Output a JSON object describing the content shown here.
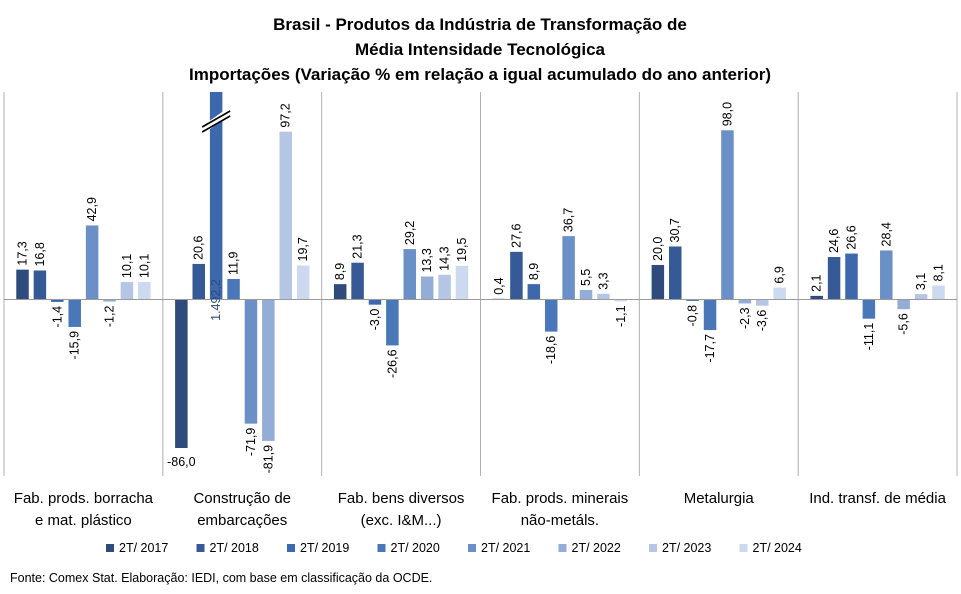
{
  "chart_data": {
    "type": "bar",
    "title": [
      "Brasil - Produtos da Indústria de Transformação de",
      "Média Intensidade Tecnológica",
      "Importações (Variação % em relação a igual acumulado do ano anterior)"
    ],
    "categories": [
      [
        "Fab. prods. borracha",
        "e mat. plástico"
      ],
      [
        "Construção de",
        "embarcações"
      ],
      [
        "Fab. bens diversos",
        "(exc. I&M...)"
      ],
      [
        "Fab. prods. minerais",
        "não-metáls."
      ],
      [
        "Metalurgia"
      ],
      [
        "Ind. transf. de média"
      ]
    ],
    "series": [
      {
        "name": "2T/ 2017",
        "color": "#2f4b7c",
        "values": [
          17.3,
          -86.0,
          8.9,
          0.4,
          20.0,
          2.1
        ],
        "labels": [
          "17,3",
          "-86,0",
          "8,9",
          "0,4",
          "20,0",
          "2,1"
        ]
      },
      {
        "name": "2T/ 2018",
        "color": "#355a96",
        "values": [
          16.8,
          20.6,
          21.3,
          27.6,
          30.7,
          24.6
        ],
        "labels": [
          "16,8",
          "20,6",
          "21,3",
          "27,6",
          "30,7",
          "24,6"
        ]
      },
      {
        "name": "2T/ 2019",
        "color": "#3d68ac",
        "values": [
          -1.4,
          1492.2,
          -3.0,
          8.9,
          -0.8,
          26.6
        ],
        "labels": [
          "-1,4",
          "1.492,2",
          "-3,0",
          "8,9",
          "-0,8",
          "26,6"
        ]
      },
      {
        "name": "2T/ 2020",
        "color": "#4a77b8",
        "values": [
          -15.9,
          11.9,
          -26.6,
          -18.6,
          -17.7,
          -11.1
        ],
        "labels": [
          "-15,9",
          "11,9",
          "-26,6",
          "-18,6",
          "-17,7",
          "-11,1"
        ]
      },
      {
        "name": "2T/ 2021",
        "color": "#6b8fc7",
        "values": [
          42.9,
          -71.9,
          29.2,
          36.7,
          98.0,
          28.4
        ],
        "labels": [
          "42,9",
          "-71,9",
          "29,2",
          "36,7",
          "98,0",
          "28,4"
        ]
      },
      {
        "name": "2T/ 2022",
        "color": "#93add6",
        "values": [
          -1.2,
          -81.9,
          13.3,
          5.5,
          -2.3,
          -5.6
        ],
        "labels": [
          "-1,2",
          "-81,9",
          "13,3",
          "5,5",
          "-2,3",
          "-5,6"
        ]
      },
      {
        "name": "2T/ 2023",
        "color": "#b4c6e4",
        "values": [
          10.1,
          97.2,
          14.3,
          3.3,
          -3.6,
          3.1
        ],
        "labels": [
          "10,1",
          "97,2",
          "14,3",
          "3,3",
          "-3,6",
          "3,1"
        ]
      },
      {
        "name": "2T/ 2024",
        "color": "#cdd9ee",
        "values": [
          10.1,
          19.7,
          19.5,
          -1.1,
          6.9,
          8.1
        ],
        "labels": [
          "10,1",
          "19,7",
          "19,5",
          "-1,1",
          "6,9",
          "8,1"
        ]
      }
    ],
    "ylim": [
      -86,
      100
    ],
    "axis_break": {
      "category": 1,
      "series": 2
    },
    "legend_position": "bottom",
    "gridlines": false
  },
  "source": "Fonte: Comex Stat. Elaboração: IEDI, com base em classificação da OCDE."
}
